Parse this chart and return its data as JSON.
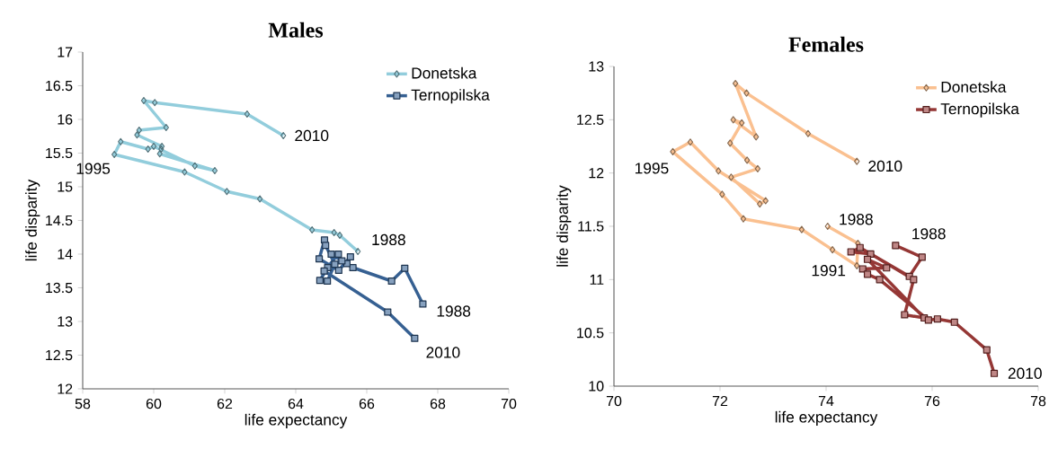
{
  "chart_data": [
    {
      "type": "line",
      "title": "Males",
      "xlabel": "life expectancy",
      "ylabel": "life disparity",
      "xlim": [
        58,
        70
      ],
      "xticks": [
        58,
        60,
        62,
        64,
        66,
        68,
        70
      ],
      "ylim": [
        12,
        17
      ],
      "yticks": [
        12,
        12.5,
        13,
        13.5,
        14,
        14.5,
        15,
        15.5,
        16,
        16.5,
        17
      ],
      "legend": "top right",
      "grid": false,
      "line_style": "solid",
      "series": [
        {
          "name": "Donetska",
          "color": "#92cddc",
          "marker": "diamond",
          "x": [
            65.75,
            65.24,
            65.08,
            64.46,
            62.99,
            62.06,
            60.87,
            58.89,
            59.07,
            59.84,
            60.0,
            61.16,
            61.72,
            60.17,
            60.21,
            60.23,
            59.53,
            59.59,
            60.35,
            59.72,
            60.03,
            62.63,
            63.65
          ],
          "values": [
            14.04,
            14.28,
            14.32,
            14.36,
            14.82,
            14.93,
            15.22,
            15.48,
            15.67,
            15.56,
            15.6,
            15.31,
            15.24,
            15.49,
            15.56,
            15.6,
            15.77,
            15.84,
            15.88,
            16.28,
            16.25,
            16.08,
            15.76
          ]
        },
        {
          "name": "Ternopilska",
          "color": "#366092",
          "marker": "square",
          "x": [
            67.58,
            67.07,
            66.7,
            65.61,
            65.44,
            65.54,
            65.21,
            64.66,
            64.81,
            64.84,
            65.1,
            64.89,
            64.68,
            64.9,
            65.3,
            65.0,
            65.2,
            64.8,
            66.59,
            67.35
          ],
          "values": [
            13.26,
            13.79,
            13.6,
            13.8,
            13.86,
            13.96,
            13.76,
            13.93,
            14.21,
            14.13,
            13.85,
            13.6,
            13.61,
            13.8,
            13.9,
            14.0,
            14.0,
            13.75,
            13.14,
            12.75
          ]
        }
      ],
      "annotations": [
        {
          "text": "2010",
          "x": 63.65,
          "y": 15.76
        },
        {
          "text": "1995",
          "x": 58.89,
          "y": 15.48
        },
        {
          "text": "1988",
          "x": 65.75,
          "y": 14.04
        },
        {
          "text": "1988",
          "x": 67.58,
          "y": 13.26
        },
        {
          "text": "2010",
          "x": 67.35,
          "y": 12.75
        }
      ]
    },
    {
      "type": "line",
      "title": "Females",
      "xlabel": "life expectancy",
      "ylabel": "life disparity",
      "xlim": [
        70,
        78
      ],
      "xticks": [
        70,
        72,
        74,
        76,
        78
      ],
      "ylim": [
        10,
        13
      ],
      "yticks": [
        10,
        10.5,
        11,
        11.5,
        12,
        12.5,
        13
      ],
      "legend": "top right",
      "grid": false,
      "line_style": "solid",
      "series": [
        {
          "name": "Donetska",
          "color": "#fac090",
          "marker": "diamond",
          "x": [
            74.03,
            74.6,
            74.58,
            74.12,
            73.54,
            72.44,
            72.04,
            71.11,
            71.44,
            71.97,
            72.86,
            72.75,
            72.21,
            72.71,
            72.51,
            72.19,
            72.41,
            72.25,
            72.68,
            72.29,
            72.5,
            73.66,
            74.58
          ],
          "values": [
            11.5,
            11.34,
            11.13,
            11.28,
            11.47,
            11.57,
            11.8,
            12.2,
            12.29,
            12.02,
            11.74,
            11.71,
            11.96,
            12.04,
            12.12,
            12.28,
            12.47,
            12.5,
            12.34,
            12.84,
            12.75,
            12.37,
            12.11
          ]
        },
        {
          "name": "Ternopilska",
          "color": "#953735",
          "marker": "square",
          "x": [
            75.31,
            75.81,
            75.57,
            74.64,
            74.47,
            74.84,
            75.65,
            75.48,
            75.85,
            74.78,
            75.14,
            74.69,
            74.78,
            75.01,
            75.93,
            76.1,
            76.42,
            77.03,
            77.17
          ],
          "values": [
            11.32,
            11.21,
            11.03,
            11.3,
            11.26,
            11.24,
            11.0,
            10.67,
            10.64,
            11.19,
            11.11,
            11.1,
            11.05,
            11.0,
            10.62,
            10.63,
            10.6,
            10.34,
            10.12
          ]
        }
      ],
      "annotations": [
        {
          "text": "1995",
          "x": 71.11,
          "y": 12.2
        },
        {
          "text": "2010",
          "x": 74.58,
          "y": 12.11
        },
        {
          "text": "1988",
          "x": 74.03,
          "y": 11.5
        },
        {
          "text": "1991",
          "x": 74.58,
          "y": 11.13
        },
        {
          "text": "1988",
          "x": 75.31,
          "y": 11.32
        },
        {
          "text": "2010",
          "x": 77.17,
          "y": 10.12
        }
      ]
    }
  ]
}
